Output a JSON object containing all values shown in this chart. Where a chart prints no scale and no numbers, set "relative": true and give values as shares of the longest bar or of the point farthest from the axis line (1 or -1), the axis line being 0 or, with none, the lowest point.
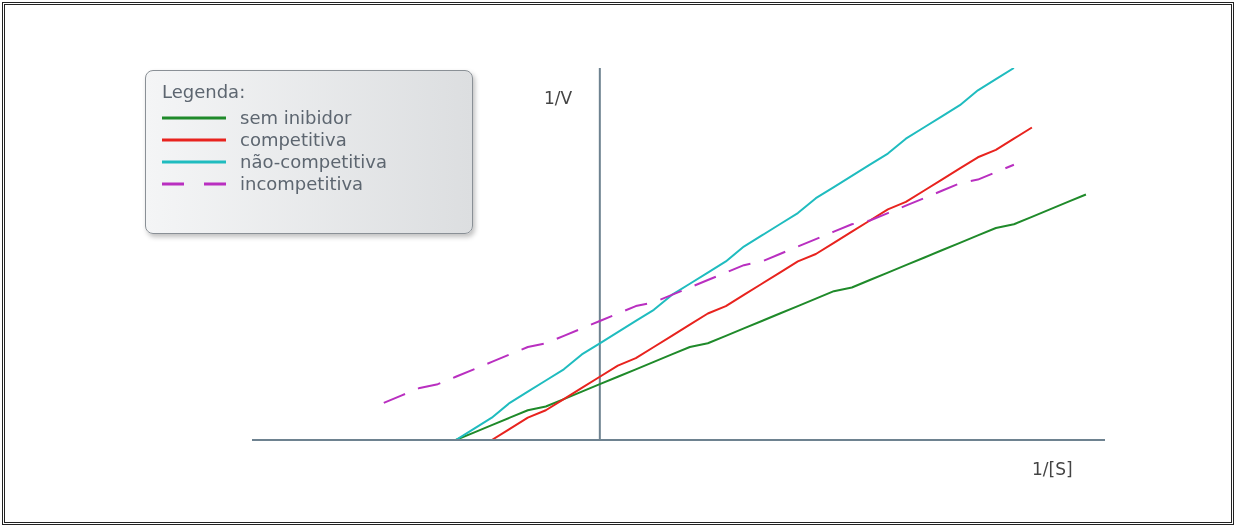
{
  "chart_data": {
    "type": "line",
    "relative": true,
    "xlabel": "1/[S]",
    "ylabel": "1/V",
    "legend_title": "Legenda:",
    "legend": "top left",
    "marker": "none",
    "categories": [
      null,
      null,
      null,
      null,
      null,
      null,
      null,
      null,
      null,
      null,
      null,
      null,
      null,
      null,
      null,
      null,
      null,
      null,
      null,
      null,
      null,
      null,
      null,
      null,
      null,
      null,
      null,
      null,
      null,
      null,
      null,
      null,
      null,
      null,
      null,
      null,
      null,
      null,
      null,
      null
    ],
    "series": [
      {
        "name": "sem inibidor",
        "color": "#1f8a2a",
        "values": [
          null,
          null,
          null,
          null,
          0,
          0.02,
          0.04,
          0.06,
          0.08,
          0.09,
          0.11,
          0.13,
          0.15,
          0.17,
          0.19,
          0.21,
          0.23,
          0.25,
          0.26,
          0.28,
          0.3,
          0.32,
          0.34,
          0.36,
          0.38,
          0.4,
          0.41,
          0.43,
          0.45,
          0.47,
          0.49,
          0.51,
          0.53,
          0.55,
          0.57,
          0.58,
          0.6,
          0.62,
          0.64,
          0.66
        ]
      },
      {
        "name": "competitiva",
        "color": "#e8231e",
        "values": [
          null,
          null,
          null,
          null,
          null,
          null,
          0,
          0.03,
          0.06,
          0.08,
          0.11,
          0.14,
          0.17,
          0.2,
          0.22,
          0.25,
          0.28,
          0.31,
          0.34,
          0.36,
          0.39,
          0.42,
          0.45,
          0.48,
          0.5,
          0.53,
          0.56,
          0.59,
          0.62,
          0.64,
          0.67,
          0.7,
          0.73,
          0.76,
          0.78,
          0.81,
          0.84,
          null,
          null,
          null
        ]
      },
      {
        "name": "não-competitiva",
        "color": "#1fbcbf",
        "values": [
          null,
          null,
          null,
          null,
          0,
          0.03,
          0.06,
          0.1,
          0.13,
          0.16,
          0.19,
          0.23,
          0.26,
          0.29,
          0.32,
          0.35,
          0.39,
          0.42,
          0.45,
          0.48,
          0.52,
          0.55,
          0.58,
          0.61,
          0.65,
          0.68,
          0.71,
          0.74,
          0.77,
          0.81,
          0.84,
          0.87,
          0.9,
          0.94,
          0.97,
          1,
          null,
          null,
          null,
          null
        ]
      },
      {
        "name": "incompetitiva",
        "color": "#b92fc0",
        "line_style": "dashed",
        "values": [
          0.1,
          0.12,
          0.14,
          0.15,
          0.17,
          0.19,
          0.21,
          0.23,
          0.25,
          0.26,
          0.28,
          0.3,
          0.32,
          0.34,
          0.36,
          0.37,
          0.39,
          0.41,
          0.43,
          0.45,
          0.47,
          0.48,
          0.5,
          0.52,
          0.54,
          0.56,
          0.58,
          0.59,
          0.61,
          0.63,
          0.65,
          0.67,
          0.69,
          0.7,
          0.72,
          0.74,
          null,
          null,
          null,
          null
        ]
      }
    ]
  }
}
